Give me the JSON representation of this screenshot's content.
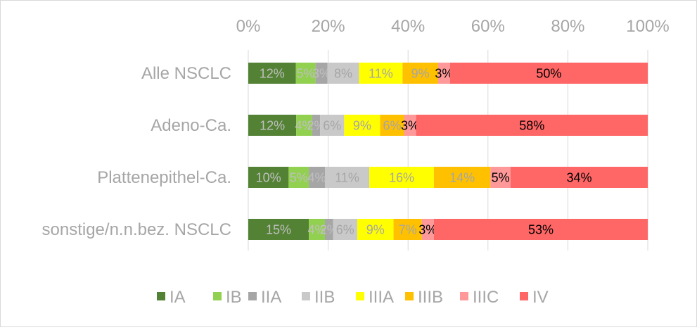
{
  "chart_data": {
    "type": "bar",
    "orientation": "horizontal",
    "stacked": "percent",
    "categories": [
      "Alle NSCLC",
      "Adeno-Ca.",
      "Plattenepithel-Ca.",
      "sonstige/n.n.bez. NSCLC"
    ],
    "series": [
      {
        "name": "IA",
        "color": "#548235",
        "label_color": "#bfbfbf",
        "values": [
          12,
          12,
          10,
          15
        ],
        "labels": [
          "12%",
          "12%",
          "10%",
          "15%"
        ]
      },
      {
        "name": "IB",
        "color": "#92d050",
        "label_color": "#bfbfbf",
        "values": [
          5,
          4,
          5,
          4
        ],
        "labels": [
          "5%",
          "4%",
          "5%",
          "4%"
        ]
      },
      {
        "name": "IIA",
        "color": "#a6a6a6",
        "label_color": "#bfbfbf",
        "values": [
          3,
          2,
          4,
          2
        ],
        "labels": [
          "3%",
          "2%",
          "4%",
          "2%"
        ]
      },
      {
        "name": "IIB",
        "color": "#c9c9c9",
        "label_color": "#a6a6a6",
        "values": [
          8,
          6,
          11,
          6
        ],
        "labels": [
          "8%",
          "6%",
          "11%",
          "6%"
        ]
      },
      {
        "name": "IIIA",
        "color": "#ffff00",
        "label_color": "#a6a6a6",
        "values": [
          11,
          9,
          16,
          9
        ],
        "labels": [
          "11%",
          "9%",
          "16%",
          "9%"
        ]
      },
      {
        "name": "IIIB",
        "color": "#ffc000",
        "label_color": "#a6a6a6",
        "values": [
          9,
          6,
          14,
          7
        ],
        "labels": [
          "9%",
          "6%",
          "14%",
          "7%"
        ]
      },
      {
        "name": "IIIC",
        "color": "#ff9999",
        "label_color": "#000000",
        "values": [
          3,
          3,
          5,
          3
        ],
        "labels": [
          "3%",
          "3%",
          "5%",
          "3%"
        ]
      },
      {
        "name": "IV",
        "color": "#ff6666",
        "label_color": "#000000",
        "values": [
          50,
          58,
          34,
          53
        ],
        "labels": [
          "50%",
          "58%",
          "34%",
          "53%"
        ]
      }
    ],
    "x_ticks": [
      "0%",
      "20%",
      "40%",
      "60%",
      "80%",
      "100%"
    ],
    "xlim": [
      0,
      100
    ],
    "axis_position": "top",
    "grid": true,
    "legend_position": "bottom"
  }
}
